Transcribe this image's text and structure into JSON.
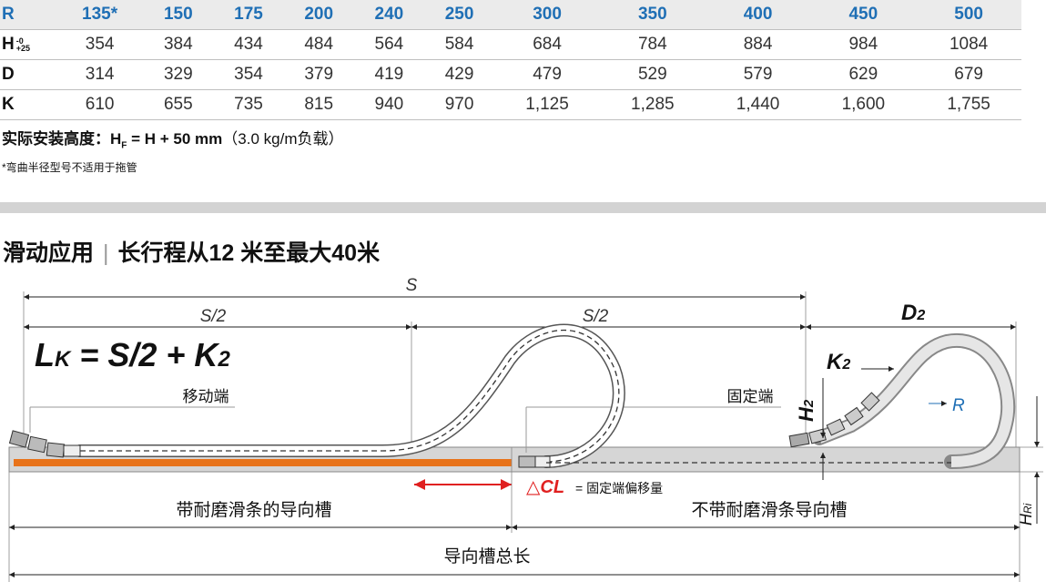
{
  "table": {
    "header": {
      "label": "R",
      "values": [
        "135*",
        "150",
        "175",
        "200",
        "240",
        "250",
        "300",
        "350",
        "400",
        "450",
        "500"
      ]
    },
    "rows": [
      {
        "label": "H",
        "tol_top": "-0",
        "tol_bottom": "+25",
        "values": [
          "354",
          "384",
          "434",
          "484",
          "564",
          "584",
          "684",
          "784",
          "884",
          "984",
          "1084"
        ]
      },
      {
        "label": "D",
        "values": [
          "314",
          "329",
          "354",
          "379",
          "419",
          "429",
          "479",
          "529",
          "579",
          "629",
          "679"
        ]
      },
      {
        "label": "K",
        "values": [
          "610",
          "655",
          "735",
          "815",
          "940",
          "970",
          "1,125",
          "1,285",
          "1,440",
          "1,600",
          "1,755"
        ]
      }
    ]
  },
  "notes": {
    "install_label": "实际安装高度：",
    "install_formula_h": "H",
    "install_formula_sub": "F",
    "install_formula_rest": " = H + 50 mm",
    "install_load": "（3.0 kg/m负载）",
    "footnote": "*弯曲半径型号不适用于拖管"
  },
  "section": {
    "title_main": "滑动应用",
    "title_sep": "|",
    "title_sub": "长行程从12 米至最大40米"
  },
  "diagram": {
    "s": "S",
    "s_half_left": "S/2",
    "s_half_right": "S/2",
    "formula_l": "L",
    "formula_l_sub": "K",
    "formula_rest": " = S/2 + K",
    "formula_rest_sub": "2",
    "moving_end": "移动端",
    "fixed_end": "固定端",
    "h2_main": "H",
    "h2_sub": "2",
    "d2_main": "D",
    "d2_sub": "2",
    "k2_main": "K",
    "k2_sub": "2",
    "r_label": "R",
    "delta_cl": "△CL",
    "delta_cl_desc": "= 固定端偏移量",
    "hri_main": "H",
    "hri_sub": "Ri",
    "guide_with_strip": "带耐磨滑条的导向槽",
    "guide_without_strip": "不带耐磨滑条导向槽",
    "guide_total": "导向槽总长",
    "colors": {
      "accent_blue": "#1f6fb5",
      "orange": "#e8731a",
      "red": "#e02020",
      "trough_gray": "#d6d6d6"
    }
  }
}
